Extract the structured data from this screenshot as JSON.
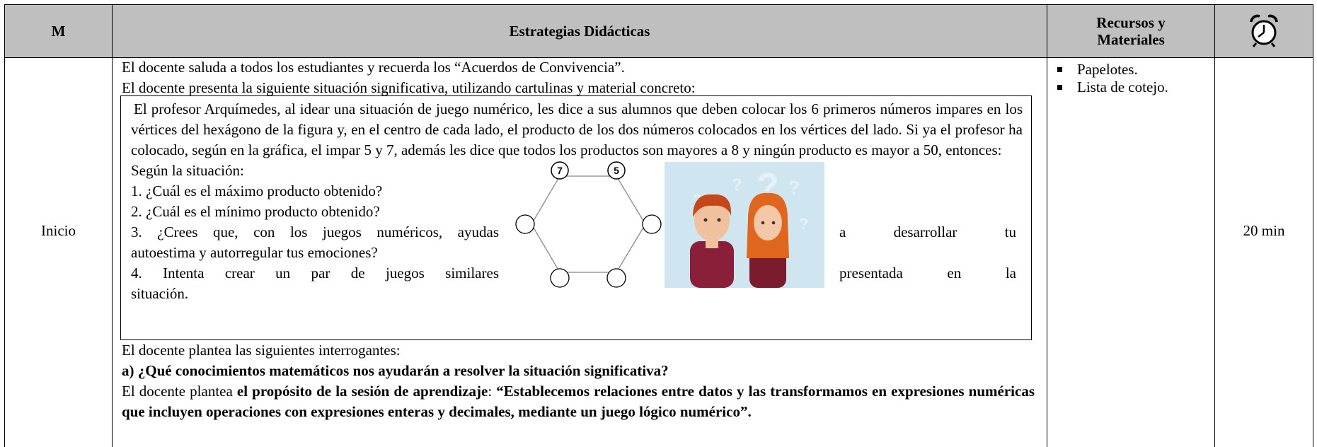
{
  "header": {
    "phase": "M",
    "strategies": "Estrategias Didácticas",
    "resources": "Recursos y Materiales"
  },
  "row": {
    "phase": "Inicio",
    "time": "20 min",
    "resources": [
      "Papelotes.",
      "Lista de cotejo."
    ],
    "intro": [
      "El docente saluda a todos los estudiantes y recuerda los “Acuerdos de Convivencia”.",
      "El docente presenta la siguiente situación significativa, utilizando cartulinas y material concreto:"
    ],
    "situation": {
      "text": "El profesor Arquímedes, al idear una situación de juego numérico, les dice a sus alumnos que deben colocar los 6 primeros números impares en los vértices del hexágono de la figura y, en el centro de cada lado, el producto de los dos números colocados en los vértices del lado. Si ya el profesor ha colocado, según en la gráfica, el impar 5 y 7, además les dice que todos los productos son mayores a 8 y ningún producto es mayor a 50, entonces:",
      "prompt": "Según la situación:",
      "q1": "1. ¿Cuál es el máximo producto obtenido?",
      "q2": "2. ¿Cuál es el mínimo producto obtenido?",
      "q3": {
        "start": "3. ¿Crees que, con los juegos numéricos, ayudas",
        "middle": "a desarrollar tu",
        "end": "autoestima y autorregular tus emociones?"
      },
      "q4": {
        "start": "4. Intenta crear un par de juegos similares",
        "middle": "presentada en la",
        "end": "situación."
      },
      "hexagon_labels": [
        "7",
        "5"
      ]
    },
    "questions_intro": "El docente plantea las siguientes interrogantes:",
    "question_a": "a) ¿Qué conocimientos matemáticos nos ayudarán a resolver la situación significativa?",
    "purpose": {
      "lead": "El docente plantea ",
      "bold": "el propósito de la sesión de aprendizaje",
      "colon": ": ",
      "quote": "“Establecemos relaciones entre datos y las transformamos en expresiones numéricas que incluyen operaciones con expresiones enteras y decimales, mediante un juego lógico numérico”."
    }
  }
}
